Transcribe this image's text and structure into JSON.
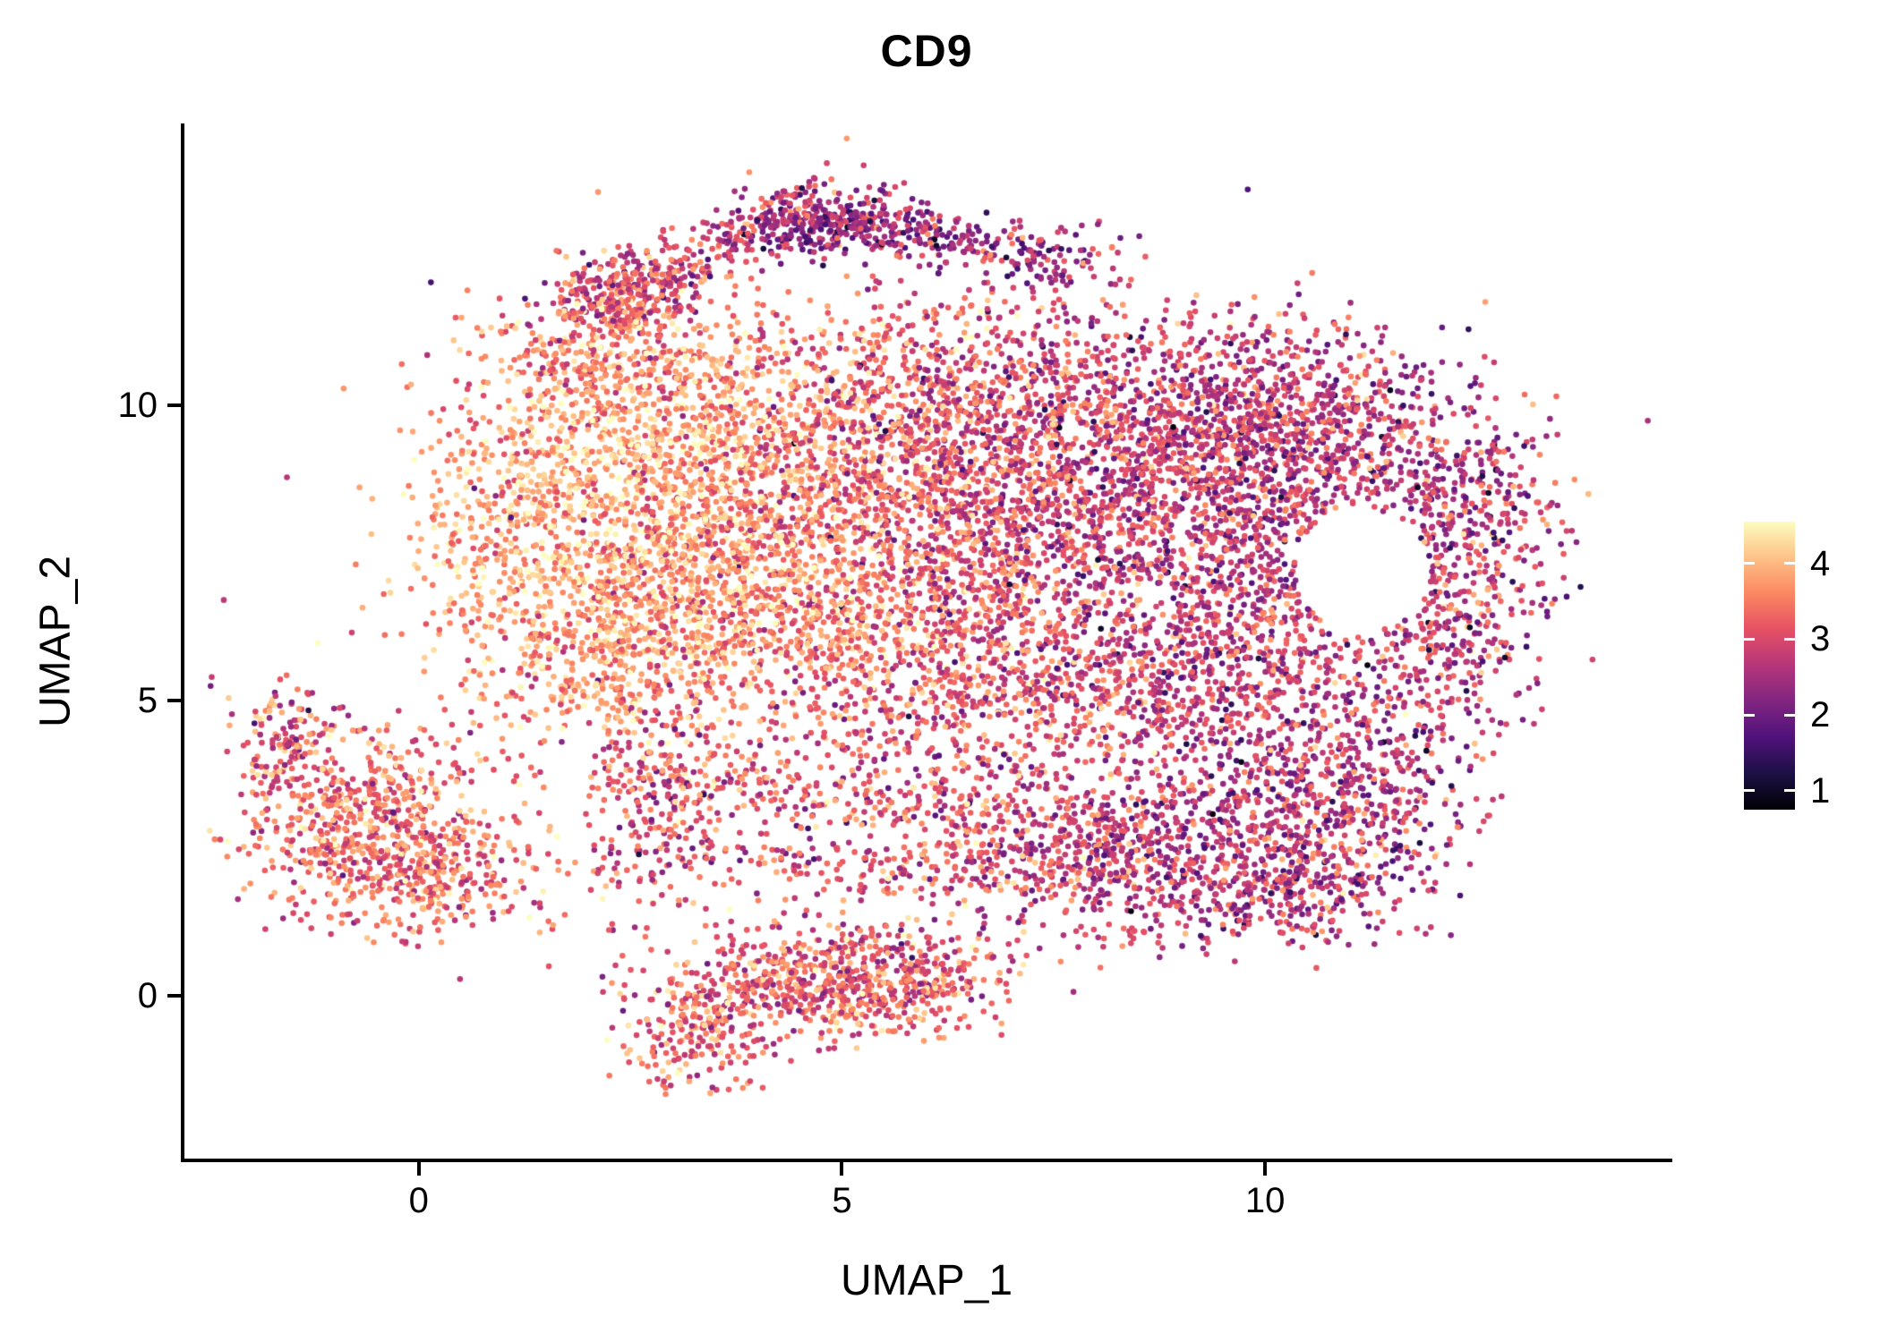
{
  "chart_data": {
    "type": "scatter",
    "title": "CD9",
    "xlabel": "UMAP_1",
    "ylabel": "UMAP_2",
    "xlim": [
      -2.78,
      14.78
    ],
    "ylim": [
      -2.76,
      14.74
    ],
    "x_ticks": [
      0,
      5,
      10
    ],
    "y_ticks": [
      0,
      5,
      10
    ],
    "grid": false,
    "background": "#ffffff",
    "axis_color": "#000000",
    "point_radius_px": 3.3,
    "seed": 42,
    "colorbar": {
      "ticks": [
        1,
        2,
        3,
        4
      ],
      "vmin": 0.75,
      "vmax": 4.55,
      "palette_name": "magma",
      "stops": [
        {
          "t": 0.0,
          "color": "#000004"
        },
        {
          "t": 0.125,
          "color": "#1C1044"
        },
        {
          "t": 0.25,
          "color": "#4F127B"
        },
        {
          "t": 0.375,
          "color": "#812581"
        },
        {
          "t": 0.5,
          "color": "#B5367A"
        },
        {
          "t": 0.625,
          "color": "#E55064"
        },
        {
          "t": 0.75,
          "color": "#FB8761"
        },
        {
          "t": 0.875,
          "color": "#FEC287"
        },
        {
          "t": 1.0,
          "color": "#FCFDBF"
        }
      ]
    },
    "cluster_fields": [
      "cx",
      "cy",
      "sx",
      "sy",
      "rot_deg",
      "n",
      "expr_mean",
      "expr_sd"
    ],
    "clusters": [
      [
        1.6,
        7.9,
        1.0,
        1.2,
        0,
        650,
        3.9,
        0.45
      ],
      [
        3.0,
        9.4,
        1.2,
        1.0,
        0,
        750,
        3.8,
        0.5
      ],
      [
        3.2,
        7.0,
        1.2,
        1.0,
        0,
        650,
        3.8,
        0.5
      ],
      [
        4.7,
        8.7,
        1.2,
        1.2,
        0,
        650,
        3.5,
        0.55
      ],
      [
        4.6,
        6.2,
        1.3,
        0.9,
        0,
        520,
        3.5,
        0.55
      ],
      [
        2.2,
        5.7,
        0.9,
        0.7,
        0,
        320,
        3.6,
        0.5
      ],
      [
        2.3,
        10.8,
        0.8,
        0.6,
        0,
        280,
        3.6,
        0.5
      ],
      [
        5.8,
        10.4,
        1.0,
        0.9,
        0,
        420,
        3.2,
        0.6
      ],
      [
        6.5,
        8.6,
        1.1,
        1.1,
        0,
        560,
        3.1,
        0.6
      ],
      [
        6.3,
        6.1,
        1.0,
        0.8,
        0,
        380,
        3.2,
        0.6
      ],
      [
        2.35,
        11.9,
        0.4,
        0.35,
        0,
        190,
        3.1,
        0.55
      ],
      [
        3.3,
        12.5,
        1.1,
        0.28,
        35,
        300,
        2.9,
        0.6
      ],
      [
        4.8,
        13.1,
        0.5,
        0.3,
        0,
        210,
        2.3,
        0.5
      ],
      [
        6.1,
        12.85,
        1.0,
        0.25,
        -10,
        250,
        2.4,
        0.55
      ],
      [
        7.6,
        12.4,
        0.5,
        0.3,
        0,
        60,
        2.5,
        0.6
      ],
      [
        8.0,
        9.8,
        1.3,
        1.0,
        0,
        650,
        2.9,
        0.6
      ],
      [
        9.6,
        10.2,
        1.0,
        0.8,
        0,
        420,
        2.8,
        0.6
      ],
      [
        8.3,
        7.6,
        1.2,
        1.1,
        0,
        750,
        2.8,
        0.6
      ],
      [
        9.8,
        8.7,
        1.0,
        0.9,
        0,
        480,
        2.7,
        0.6
      ],
      [
        11.2,
        9.4,
        1.0,
        0.8,
        0,
        430,
        2.7,
        0.6
      ],
      [
        12.35,
        7.8,
        0.55,
        0.9,
        0,
        330,
        2.7,
        0.65
      ],
      [
        12.1,
        6.0,
        0.65,
        0.8,
        0,
        290,
        2.8,
        0.65
      ],
      [
        10.1,
        6.2,
        0.8,
        0.8,
        0,
        340,
        2.8,
        0.6
      ],
      [
        9.0,
        5.3,
        1.0,
        0.7,
        0,
        330,
        2.9,
        0.6
      ],
      [
        7.3,
        4.9,
        0.9,
        0.6,
        0,
        230,
        3.0,
        0.6
      ],
      [
        9.6,
        3.0,
        1.3,
        0.9,
        0,
        650,
        2.7,
        0.6
      ],
      [
        11.0,
        3.7,
        0.8,
        0.8,
        0,
        330,
        2.7,
        0.6
      ],
      [
        8.3,
        2.2,
        0.9,
        0.7,
        0,
        330,
        2.8,
        0.6
      ],
      [
        10.3,
        1.7,
        0.8,
        0.5,
        0,
        230,
        2.7,
        0.6
      ],
      [
        4.5,
        3.5,
        1.8,
        0.35,
        -8,
        290,
        3.2,
        0.6
      ],
      [
        5.3,
        2.2,
        2.0,
        0.3,
        -4,
        270,
        3.1,
        0.6
      ],
      [
        2.8,
        3.2,
        0.3,
        0.9,
        0,
        170,
        3.1,
        0.6
      ],
      [
        7.0,
        2.9,
        0.7,
        0.5,
        0,
        150,
        2.9,
        0.6
      ],
      [
        5.6,
        4.5,
        1.5,
        0.45,
        0,
        140,
        3.2,
        0.6
      ],
      [
        -0.6,
        2.9,
        0.75,
        0.85,
        0,
        650,
        3.4,
        0.55
      ],
      [
        -1.6,
        4.35,
        0.3,
        0.5,
        0,
        110,
        3.2,
        0.6
      ],
      [
        0.3,
        2.0,
        0.6,
        0.5,
        0,
        230,
        3.4,
        0.55
      ],
      [
        3.3,
        -0.5,
        0.45,
        0.5,
        0,
        240,
        3.3,
        0.55
      ],
      [
        4.3,
        0.3,
        0.6,
        0.5,
        0,
        260,
        3.2,
        0.55
      ],
      [
        5.3,
        0.1,
        0.7,
        0.45,
        0,
        280,
        3.3,
        0.55
      ],
      [
        6.0,
        0.4,
        0.5,
        0.4,
        0,
        170,
        3.1,
        0.55
      ],
      [
        6.0,
        8.0,
        3.5,
        2.5,
        0,
        220,
        3.0,
        0.7
      ],
      [
        4.5,
        1.3,
        2.0,
        0.6,
        0,
        60,
        3.1,
        0.6
      ]
    ],
    "holes": [
      {
        "cx": 11.15,
        "cy": 7.2,
        "rx": 0.8,
        "ry": 1.05
      }
    ]
  }
}
